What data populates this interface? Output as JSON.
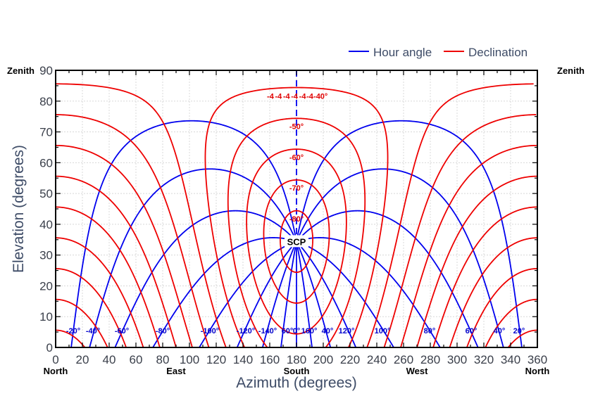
{
  "chart_data": {
    "type": "line",
    "title": "",
    "xlabel": "Azimuth (degrees)",
    "ylabel": "Elevation (degrees)",
    "xlim": [
      0,
      360
    ],
    "ylim": [
      0,
      90
    ],
    "x_ticks": [
      "0",
      "20",
      "40",
      "60",
      "80",
      "100",
      "120",
      "140",
      "160",
      "180",
      "200",
      "220",
      "240",
      "260",
      "280",
      "300",
      "320",
      "340",
      "360"
    ],
    "y_ticks": [
      "0",
      "10",
      "20",
      "30",
      "40",
      "50",
      "60",
      "70",
      "80",
      "90"
    ],
    "observer_latitude_deg": -34.4,
    "legend": {
      "placement": "top-right",
      "entries": [
        {
          "name": "Hour angle",
          "color": "#0000ee"
        },
        {
          "name": "Declination",
          "color": "#ee0000"
        }
      ]
    },
    "direction_labels": [
      {
        "text": "North",
        "azimuth": 0
      },
      {
        "text": "East",
        "azimuth": 90
      },
      {
        "text": "South",
        "azimuth": 180
      },
      {
        "text": "West",
        "azimuth": 270
      },
      {
        "text": "North",
        "azimuth": 360
      }
    ],
    "zenith_label": "Zenith",
    "pole_label": "SCP",
    "hour_angle_lines_deg": [
      -160,
      -140,
      -120,
      -100,
      -80,
      -60,
      -40,
      -20,
      0,
      20,
      40,
      60,
      80,
      100,
      120,
      140,
      160,
      180
    ],
    "declination_lines_deg": [
      -80,
      -70,
      -60,
      -50,
      -40,
      -30,
      -20,
      -10,
      0,
      10,
      20,
      30,
      40,
      50
    ],
    "hour_angle_labels": [
      {
        "text": "-20°",
        "azimuth": 104
      },
      {
        "text": "-40°",
        "azimuth": 132
      },
      {
        "text": "-60°",
        "azimuth": 173
      },
      {
        "text": "-80°",
        "azimuth": 231
      },
      {
        "text": "-100°",
        "azimuth": 298
      },
      {
        "text": "-120°",
        "azimuth": 349
      },
      {
        "text": "-140°",
        "azimuth": 380
      },
      {
        "text": "60°",
        "azimuth": 408
      },
      {
        "text": "0°",
        "azimuth": 421
      },
      {
        "text": "160°",
        "azimuth": 439
      },
      {
        "text": "40°",
        "azimuth": 465
      },
      {
        "text": "120°",
        "azimuth": 492
      },
      {
        "text": "100°",
        "azimuth": 543
      },
      {
        "text": "80°",
        "azimuth": 610
      },
      {
        "text": "60°",
        "azimuth": 669
      },
      {
        "text": "40°",
        "azimuth": 709
      },
      {
        "text": "20°",
        "azimuth": 737
      }
    ],
    "declination_labels": [
      {
        "text": "-4",
        "elevation": 81.7,
        "azimuth": 160.5
      },
      {
        "text": "-4",
        "elevation": 81.7,
        "azimuth": 166.5
      },
      {
        "text": "-4",
        "elevation": 81.7,
        "azimuth": 172.5
      },
      {
        "text": "-4",
        "elevation": 81.7,
        "azimuth": 178.5
      },
      {
        "text": "-4",
        "elevation": 81.7,
        "azimuth": 184.5
      },
      {
        "text": "-4",
        "elevation": 81.7,
        "azimuth": 190
      },
      {
        "text": "-40°",
        "elevation": 81.7,
        "azimuth": 198
      },
      {
        "text": "-50°",
        "elevation": 71.8
      },
      {
        "text": "-60°",
        "elevation": 61.8
      },
      {
        "text": "-70°",
        "elevation": 51.8
      },
      {
        "text": "-80°",
        "elevation": 41.8
      }
    ]
  }
}
